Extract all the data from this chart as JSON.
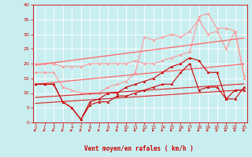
{
  "x": [
    0,
    1,
    2,
    3,
    4,
    5,
    6,
    7,
    8,
    9,
    10,
    11,
    12,
    13,
    14,
    15,
    16,
    17,
    18,
    19,
    20,
    21,
    22,
    23
  ],
  "series": [
    {
      "name": "line1_pink_upper",
      "color": "#ff9999",
      "linewidth": 0.8,
      "marker": "^",
      "markersize": 2.0,
      "y": [
        20,
        20,
        20,
        19,
        19,
        19,
        20,
        20,
        20,
        20,
        20,
        21,
        20,
        20,
        21,
        22,
        23,
        24,
        36,
        37,
        32,
        32,
        31,
        16
      ]
    },
    {
      "name": "line2_pink_mid",
      "color": "#ff9999",
      "linewidth": 0.8,
      "marker": "^",
      "markersize": 2.0,
      "y": [
        17,
        17,
        17,
        12,
        11,
        10,
        10,
        10,
        12,
        13,
        14,
        17,
        29,
        28,
        29,
        30,
        29,
        31,
        35,
        30,
        31,
        25,
        31,
        15
      ]
    },
    {
      "name": "line3_reg_upper",
      "color": "#ff6666",
      "linewidth": 0.9,
      "marker": null,
      "markersize": 0,
      "y": [
        19.5,
        19.9,
        20.3,
        20.7,
        21.1,
        21.5,
        21.9,
        22.3,
        22.7,
        23.1,
        23.5,
        23.9,
        24.3,
        24.7,
        25.1,
        25.5,
        25.9,
        26.3,
        26.7,
        27.1,
        27.5,
        27.9,
        28.3,
        28.7
      ]
    },
    {
      "name": "line4_reg_mid_upper",
      "color": "#ff6666",
      "linewidth": 0.9,
      "marker": null,
      "markersize": 0,
      "y": [
        13.0,
        13.3,
        13.6,
        13.9,
        14.2,
        14.5,
        14.8,
        15.1,
        15.4,
        15.7,
        16.0,
        16.3,
        16.6,
        16.9,
        17.2,
        17.5,
        17.8,
        18.1,
        18.4,
        18.7,
        19.0,
        19.3,
        19.6,
        19.9
      ]
    },
    {
      "name": "line5_reg_mid",
      "color": "#dd2222",
      "linewidth": 0.8,
      "marker": null,
      "markersize": 0,
      "y": [
        8.5,
        8.7,
        8.9,
        9.1,
        9.3,
        9.5,
        9.7,
        9.9,
        10.1,
        10.3,
        10.5,
        10.7,
        10.9,
        11.1,
        11.3,
        11.5,
        11.7,
        11.9,
        12.1,
        12.3,
        12.5,
        12.7,
        12.9,
        13.1
      ]
    },
    {
      "name": "line6_reg_lower",
      "color": "#dd2222",
      "linewidth": 0.8,
      "marker": null,
      "markersize": 0,
      "y": [
        6.5,
        6.7,
        6.9,
        7.1,
        7.3,
        7.5,
        7.7,
        7.9,
        8.1,
        8.3,
        8.5,
        8.7,
        8.9,
        9.1,
        9.3,
        9.5,
        9.7,
        9.9,
        10.1,
        10.3,
        10.5,
        10.7,
        10.9,
        11.1
      ]
    },
    {
      "name": "line7_dark_markers",
      "color": "#cc0000",
      "linewidth": 0.8,
      "marker": "^",
      "markersize": 2.0,
      "y": [
        13,
        13,
        13,
        7,
        5,
        1,
        7,
        8,
        10,
        10,
        12,
        13,
        14,
        15,
        17,
        19,
        20,
        22,
        21,
        17,
        17,
        8,
        11,
        11
      ]
    },
    {
      "name": "line8_dark_lower",
      "color": "#cc0000",
      "linewidth": 0.8,
      "marker": "^",
      "markersize": 2.0,
      "y": [
        13,
        13,
        13,
        7,
        5,
        1,
        6,
        7,
        7,
        9,
        9,
        10,
        11,
        12,
        13,
        13,
        17,
        20,
        11,
        12,
        12,
        8,
        8,
        12
      ]
    }
  ],
  "xlabel": "Vent moyen/en rafales ( km/h )",
  "xlim": [
    -0.3,
    23.3
  ],
  "ylim": [
    0,
    40
  ],
  "yticks": [
    0,
    5,
    10,
    15,
    20,
    25,
    30,
    35,
    40
  ],
  "xticks": [
    0,
    1,
    2,
    3,
    4,
    5,
    6,
    7,
    8,
    9,
    10,
    11,
    12,
    13,
    14,
    15,
    16,
    17,
    18,
    19,
    20,
    21,
    22,
    23
  ],
  "background_color": "#c8eef0",
  "grid_color": "#ffffff",
  "tick_color": "#cc0000",
  "label_color": "#cc0000",
  "arrow_color": "#cc0000"
}
